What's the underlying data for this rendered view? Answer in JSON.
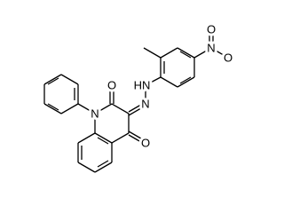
{
  "atom_labels": [
    "O",
    "N",
    "N",
    "HN",
    "O",
    "N",
    "O",
    "O"
  ]
}
